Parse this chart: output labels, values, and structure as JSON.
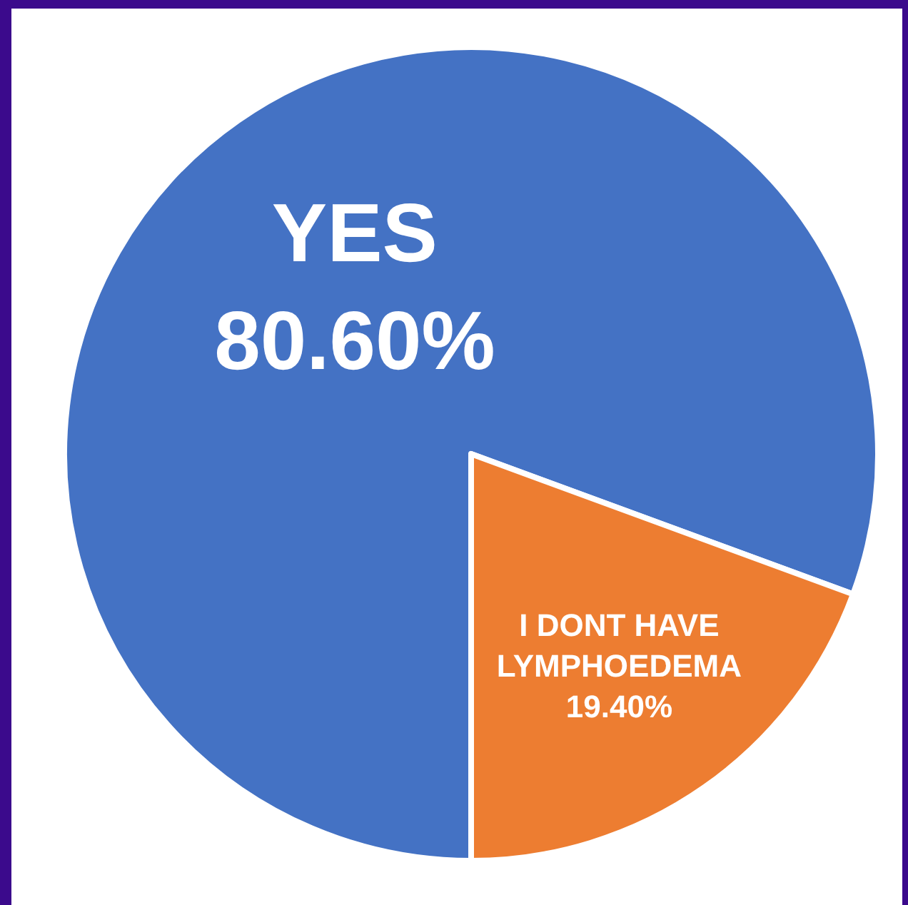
{
  "chart_data": {
    "type": "pie",
    "categories": [
      "YES",
      "I DONT HAVE LYMPHOEDEMA"
    ],
    "values": [
      80.6,
      19.4
    ],
    "value_labels": [
      "80.60%",
      "19.40%"
    ],
    "colors": [
      "#4472c4",
      "#ed7d31"
    ],
    "legend": false
  }
}
